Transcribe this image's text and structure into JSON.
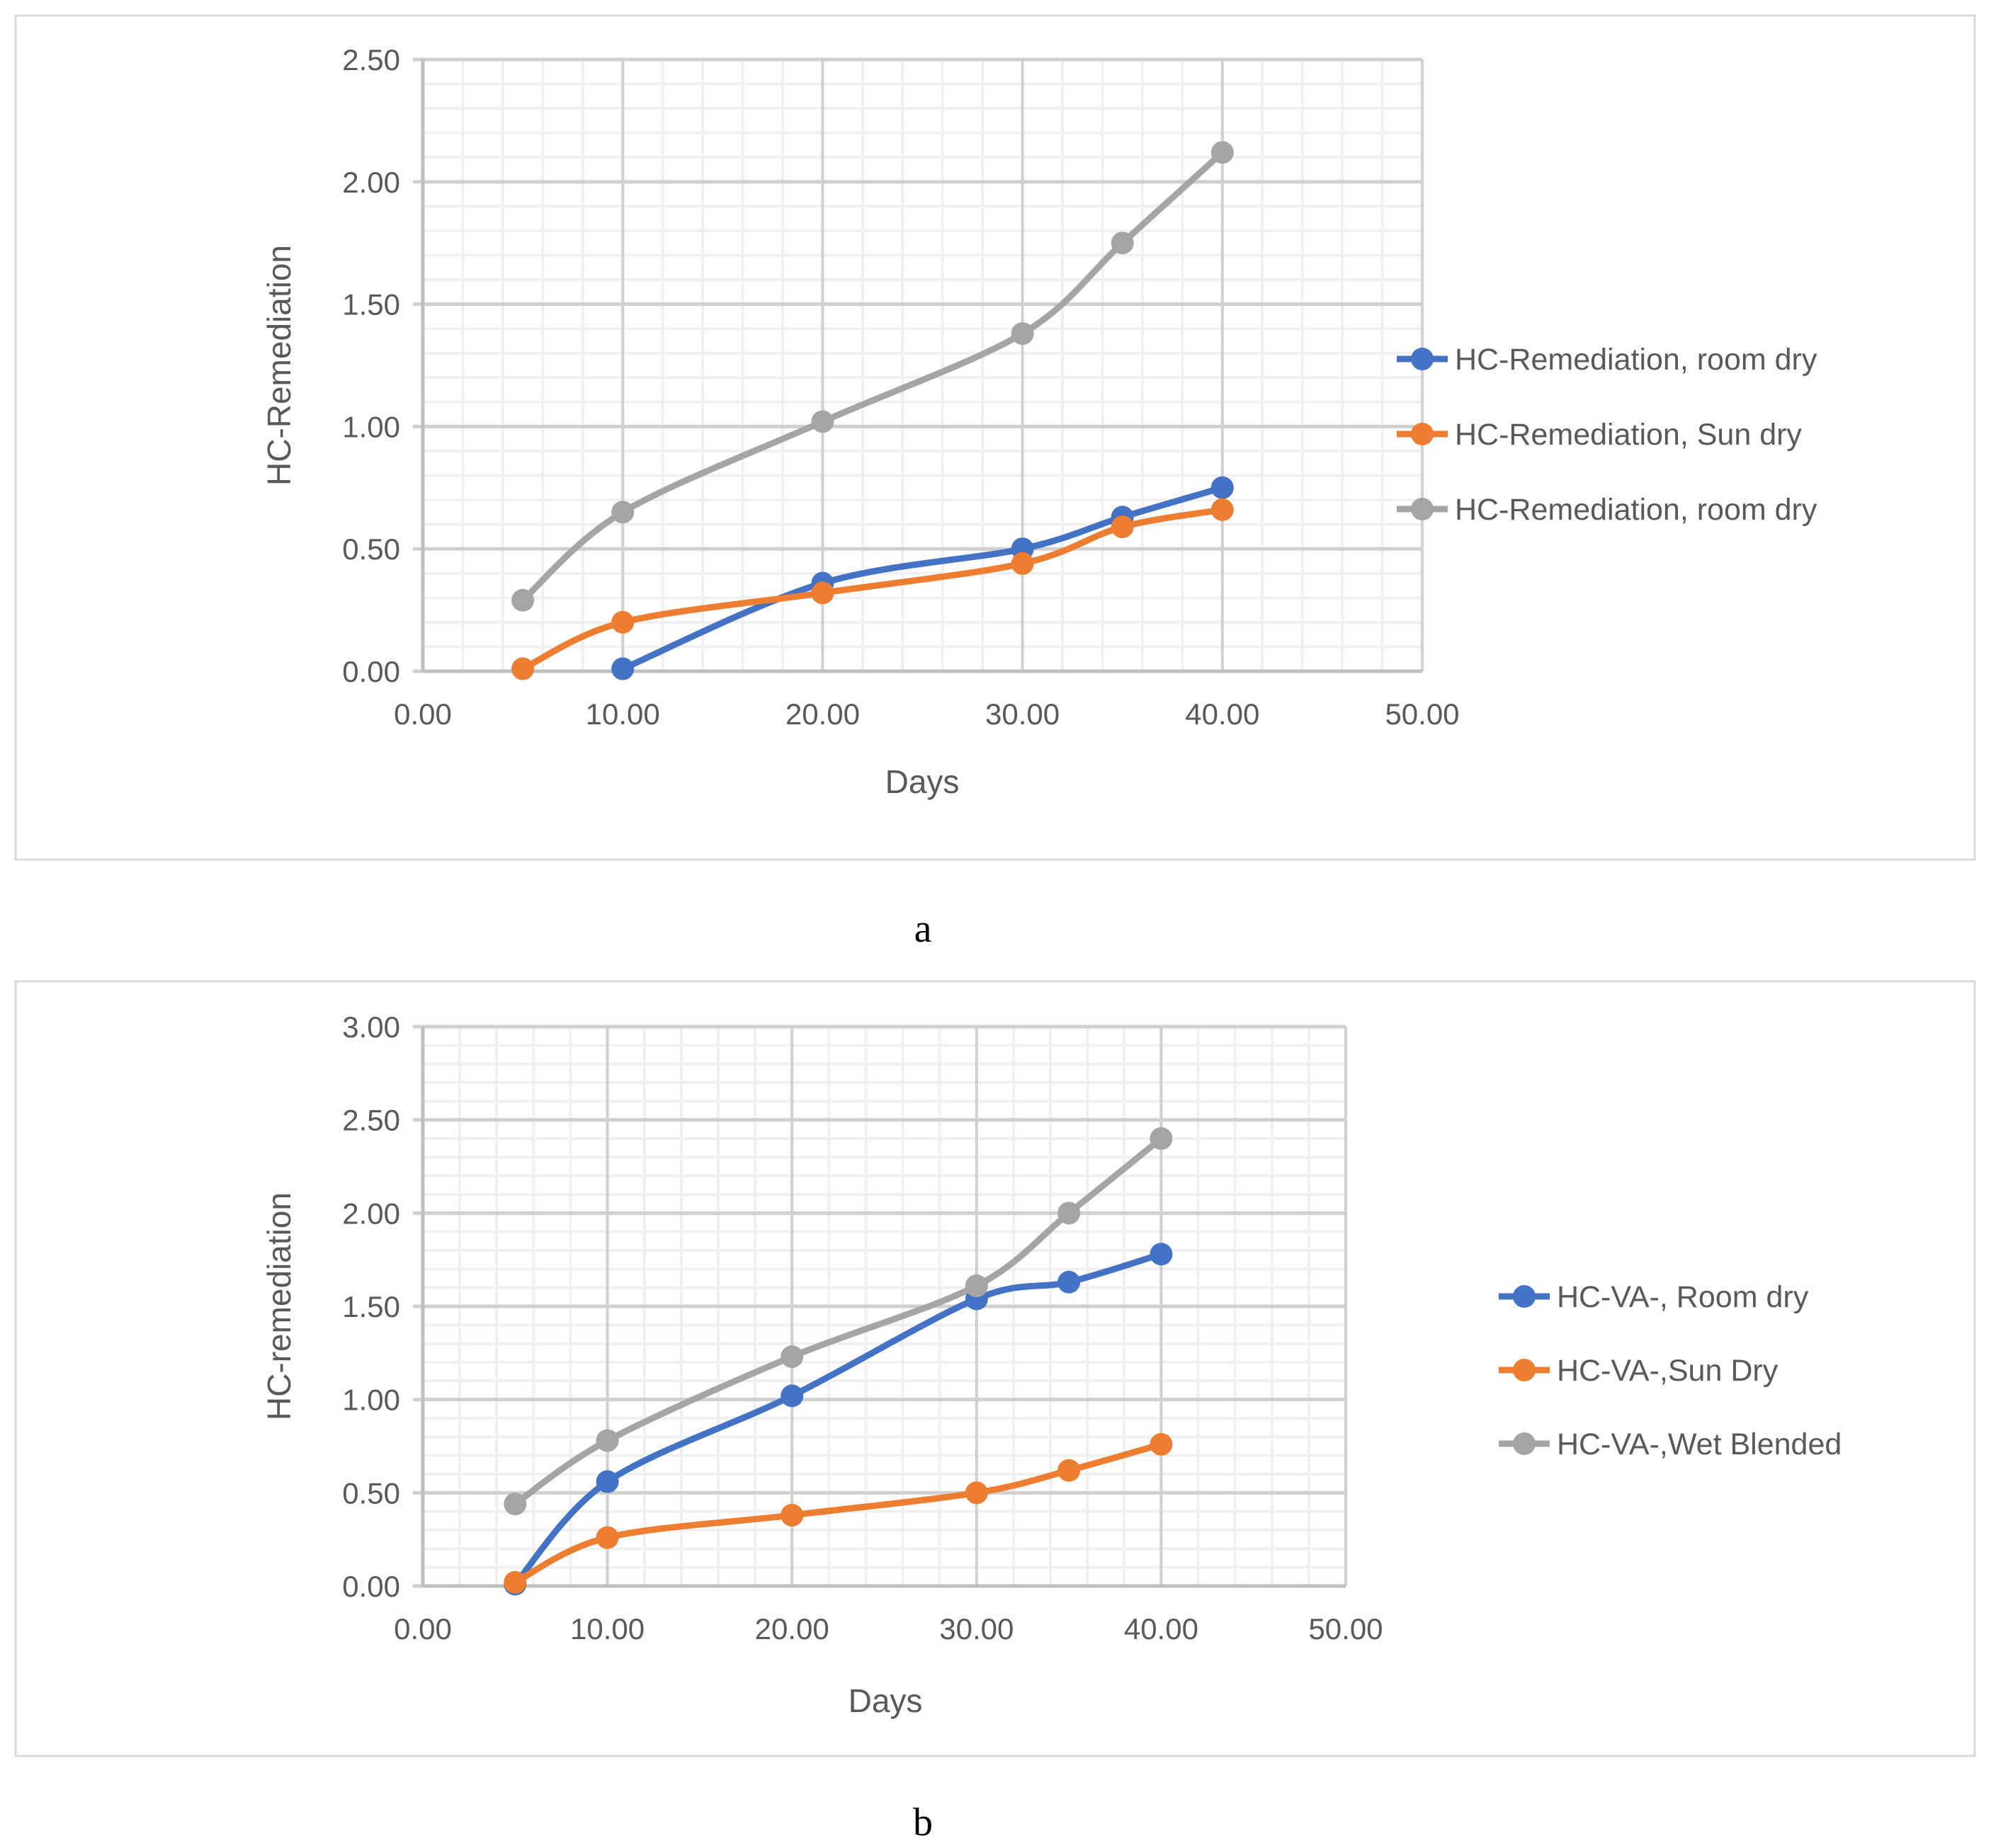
{
  "chart_data": [
    {
      "type": "line",
      "panel_label": "a",
      "xlabel": "Days",
      "ylabel": "HC-Remediation",
      "xlim": [
        0,
        50
      ],
      "ylim": [
        0,
        2.5
      ],
      "xticks": [
        "0.00",
        "10.00",
        "20.00",
        "30.00",
        "40.00",
        "50.00"
      ],
      "yticks": [
        "0.00",
        "0.50",
        "1.00",
        "1.50",
        "2.00",
        "2.50"
      ],
      "grid": true,
      "legend_position": "right",
      "series": [
        {
          "name": "HC-Remediation, room dry",
          "color": "#4472C4",
          "x": [
            10,
            20,
            30,
            35,
            40
          ],
          "y": [
            0.01,
            0.36,
            0.5,
            0.63,
            0.75
          ]
        },
        {
          "name": "HC-Remediation, Sun dry",
          "color": "#ED7D31",
          "x": [
            5,
            10,
            20,
            30,
            35,
            40
          ],
          "y": [
            0.01,
            0.2,
            0.32,
            0.44,
            0.59,
            0.66
          ]
        },
        {
          "name": "HC-Remediation, room dry",
          "color": "#A5A5A5",
          "x": [
            5,
            10,
            20,
            30,
            35,
            40
          ],
          "y": [
            0.29,
            0.65,
            1.02,
            1.38,
            1.75,
            2.12
          ]
        }
      ]
    },
    {
      "type": "line",
      "panel_label": "b",
      "xlabel": "Days",
      "ylabel": "HC-remediation",
      "xlim": [
        0,
        50
      ],
      "ylim": [
        0,
        3
      ],
      "xticks": [
        "0.00",
        "10.00",
        "20.00",
        "30.00",
        "40.00",
        "50.00"
      ],
      "yticks": [
        "0.00",
        "0.50",
        "1.00",
        "1.50",
        "2.00",
        "2.50",
        "3.00"
      ],
      "grid": true,
      "legend_position": "right",
      "series": [
        {
          "name": "HC-VA-, Room dry",
          "color": "#4472C4",
          "x": [
            5,
            10,
            20,
            30,
            35,
            40
          ],
          "y": [
            0.01,
            0.56,
            1.02,
            1.54,
            1.63,
            1.78
          ]
        },
        {
          "name": "HC-VA-,Sun Dry",
          "color": "#ED7D31",
          "x": [
            5,
            10,
            20,
            30,
            35,
            40
          ],
          "y": [
            0.02,
            0.26,
            0.38,
            0.5,
            0.62,
            0.76
          ]
        },
        {
          "name": "HC-VA-,Wet Blended",
          "color": "#A5A5A5",
          "x": [
            5,
            10,
            20,
            30,
            35,
            40
          ],
          "y": [
            0.44,
            0.78,
            1.23,
            1.61,
            2.0,
            2.4
          ]
        }
      ]
    }
  ]
}
